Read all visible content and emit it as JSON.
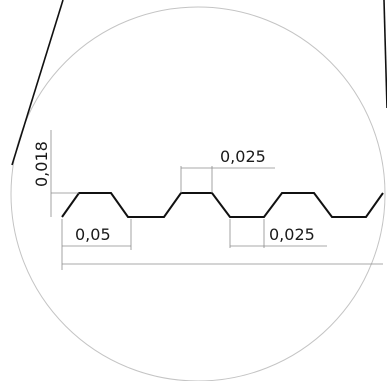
{
  "drawing": {
    "dimensions": {
      "height": "0,018",
      "pitch": "0,05",
      "crest_width": "0,025",
      "valley_width": "0,025"
    },
    "colors": {
      "profile": "#111111",
      "dimension_lines": "#8c8c8c",
      "detail_circle": "#c4c4c4",
      "background": "#ffffff"
    }
  }
}
